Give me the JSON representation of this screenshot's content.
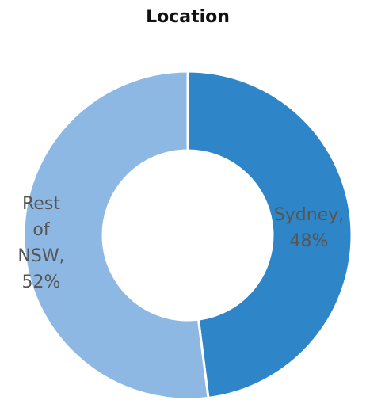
{
  "chart_data": {
    "type": "donut",
    "title": "Location",
    "categories": [
      "Sydney",
      "Rest of NSW"
    ],
    "values": [
      48,
      52
    ],
    "data_labels": [
      "Sydney, 48%",
      "Rest of NSW, 52%"
    ],
    "colors": [
      "#2e86c8",
      "#8db8e3"
    ]
  }
}
